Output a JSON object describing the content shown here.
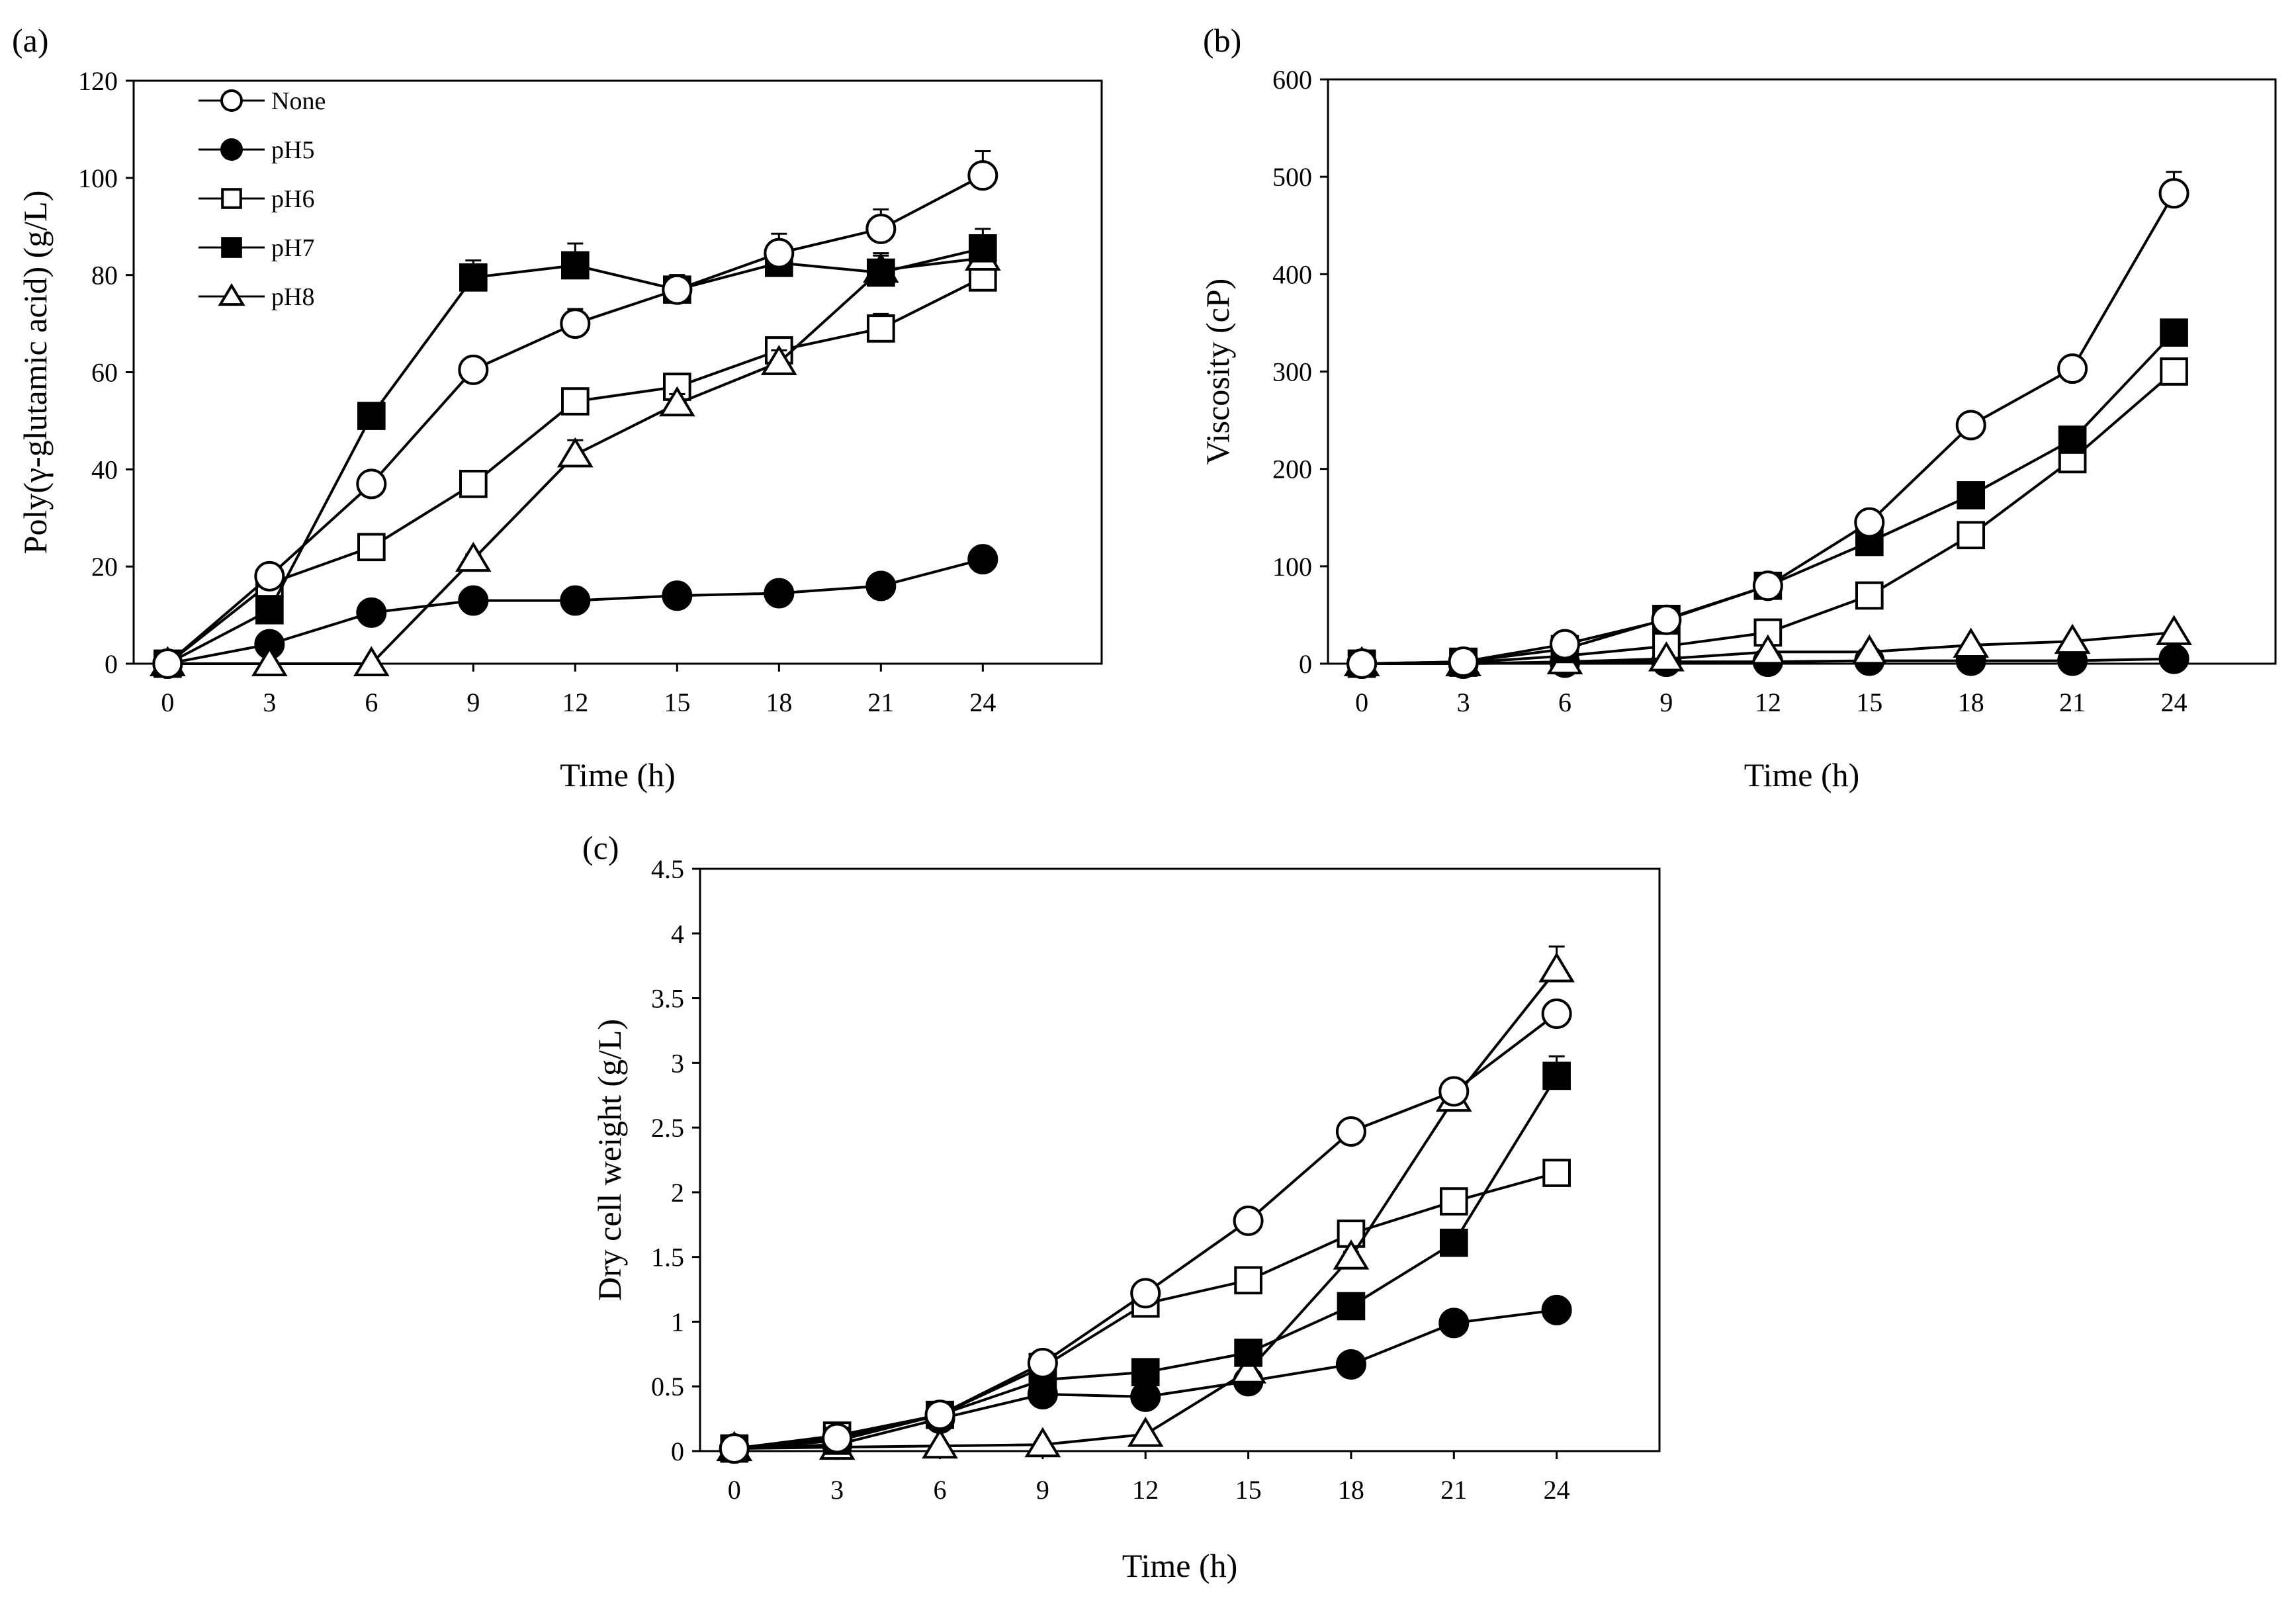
{
  "chart_data": [
    {
      "panel_label": "(a)",
      "type": "line",
      "xlabel": "Time (h)",
      "ylabel": "Poly(γ-glutamic acid) (g/L)",
      "x": [
        0,
        3,
        6,
        9,
        12,
        15,
        18,
        21,
        24
      ],
      "x_tick_labels": [
        "0",
        "3",
        "6",
        "9",
        "12",
        "15",
        "18",
        "21",
        "24"
      ],
      "xlim": [
        -1,
        27.5
      ],
      "ylim": [
        0,
        120
      ],
      "y_tick_values": [
        0,
        20,
        40,
        60,
        80,
        100,
        120
      ],
      "y_tick_labels": [
        "0",
        "20",
        "40",
        "60",
        "80",
        "100",
        "120"
      ],
      "legend": {
        "position": "top-left",
        "show": true
      },
      "series": [
        {
          "name": "None",
          "marker": "circle-open",
          "values": [
            0,
            18,
            37,
            60.5,
            70,
            77,
            84.5,
            89.5,
            100.5
          ],
          "errors": [
            0,
            1,
            1,
            1.5,
            3,
            2,
            4,
            4,
            5
          ]
        },
        {
          "name": "pH5",
          "marker": "circle-filled",
          "values": [
            0,
            4,
            10.5,
            13,
            13,
            14,
            14.5,
            16,
            21.5
          ],
          "errors": [
            0,
            0.5,
            0.5,
            0.5,
            0.5,
            0.5,
            0.5,
            1,
            1
          ]
        },
        {
          "name": "pH6",
          "marker": "square-open",
          "values": [
            0,
            16.5,
            24,
            37,
            54,
            57,
            64.5,
            69,
            79.5
          ],
          "errors": [
            0,
            1,
            1,
            1,
            1.5,
            1.5,
            2.5,
            3,
            3
          ]
        },
        {
          "name": "pH7",
          "marker": "square-filled",
          "values": [
            0,
            11,
            51,
            79.5,
            82,
            77,
            82.5,
            80.5,
            85.5
          ],
          "errors": [
            0,
            1,
            2,
            3.5,
            4.5,
            3,
            4,
            4,
            4
          ]
        },
        {
          "name": "pH8",
          "marker": "triangle-open",
          "values": [
            0,
            0,
            0,
            21.5,
            43,
            53.5,
            62,
            81,
            83.5
          ],
          "errors": [
            0,
            0,
            0,
            1,
            3,
            2,
            2.5,
            3,
            3
          ]
        }
      ]
    },
    {
      "panel_label": "(b)",
      "type": "line",
      "xlabel": "Time (h)",
      "ylabel": "Viscosity (cP)",
      "x": [
        0,
        3,
        6,
        9,
        12,
        15,
        18,
        21,
        24
      ],
      "x_tick_labels": [
        "0",
        "3",
        "6",
        "9",
        "12",
        "15",
        "18",
        "21",
        "24"
      ],
      "xlim": [
        -1,
        27
      ],
      "ylim": [
        0,
        600
      ],
      "y_tick_values": [
        0,
        100,
        200,
        300,
        400,
        500,
        600
      ],
      "y_tick_labels": [
        "0",
        "100",
        "200",
        "300",
        "400",
        "500",
        "600"
      ],
      "legend": {
        "show": false
      },
      "series": [
        {
          "name": "None",
          "marker": "circle-open",
          "values": [
            0,
            2,
            20,
            45,
            80,
            145,
            245,
            303,
            483
          ],
          "errors": [
            0,
            0,
            1,
            2,
            3,
            4,
            5,
            5,
            22
          ]
        },
        {
          "name": "pH5",
          "marker": "circle-filled",
          "values": [
            0,
            0,
            1,
            2,
            2,
            3,
            3,
            3,
            5
          ],
          "errors": [
            0,
            0,
            0,
            0,
            0,
            0,
            0,
            0,
            0
          ]
        },
        {
          "name": "pH6",
          "marker": "square-open",
          "values": [
            0,
            1,
            8,
            18,
            32,
            70,
            132,
            210,
            300
          ],
          "errors": [
            0,
            0,
            1,
            1,
            2,
            3,
            4,
            6,
            8
          ]
        },
        {
          "name": "pH7",
          "marker": "square-filled",
          "values": [
            0,
            2,
            15,
            46,
            80,
            125,
            173,
            230,
            340
          ],
          "errors": [
            0,
            0,
            1,
            2,
            3,
            4,
            5,
            6,
            12
          ]
        },
        {
          "name": "pH8",
          "marker": "triangle-open",
          "values": [
            0,
            0,
            2,
            5,
            12,
            12,
            19,
            23,
            32
          ],
          "errors": [
            0,
            0,
            0,
            0,
            1,
            1,
            1,
            1,
            2
          ]
        }
      ]
    },
    {
      "panel_label": "(c)",
      "type": "line",
      "xlabel": "Time (h)",
      "ylabel": "Dry cell weight (g/L)",
      "x": [
        0,
        3,
        6,
        9,
        12,
        15,
        18,
        21,
        24
      ],
      "x_tick_labels": [
        "0",
        "3",
        "6",
        "9",
        "12",
        "15",
        "18",
        "21",
        "24"
      ],
      "xlim": [
        -1,
        27
      ],
      "ylim": [
        0,
        4.5
      ],
      "y_tick_values": [
        0,
        0.5,
        1,
        1.5,
        2,
        2.5,
        3,
        3.5,
        4,
        4.5
      ],
      "y_tick_labels": [
        "0",
        "0.5",
        "1",
        "1.5",
        "2",
        "2.5",
        "3",
        "3.5",
        "4",
        "4.5"
      ],
      "legend": {
        "show": false
      },
      "series": [
        {
          "name": "None",
          "marker": "circle-open",
          "values": [
            0.02,
            0.1,
            0.28,
            0.68,
            1.22,
            1.78,
            2.47,
            2.78,
            3.38
          ],
          "errors": [
            0,
            0,
            0.01,
            0.02,
            0.03,
            0.03,
            0.04,
            0.06,
            0.08
          ]
        },
        {
          "name": "pH5",
          "marker": "circle-filled",
          "values": [
            0.02,
            0.05,
            0.25,
            0.44,
            0.42,
            0.54,
            0.67,
            0.99,
            1.09
          ],
          "errors": [
            0,
            0,
            0.01,
            0.02,
            0.02,
            0.02,
            0.03,
            0.03,
            0.04
          ]
        },
        {
          "name": "pH6",
          "marker": "square-open",
          "values": [
            0.02,
            0.12,
            0.28,
            0.65,
            1.14,
            1.32,
            1.68,
            1.93,
            2.15
          ],
          "errors": [
            0,
            0,
            0.01,
            0.02,
            0.03,
            0.03,
            0.04,
            0.05,
            0.05
          ]
        },
        {
          "name": "pH7",
          "marker": "square-filled",
          "values": [
            0.02,
            0.08,
            0.28,
            0.55,
            0.61,
            0.76,
            1.12,
            1.61,
            2.9
          ],
          "errors": [
            0,
            0,
            0.01,
            0.02,
            0.02,
            0.03,
            0.04,
            0.05,
            0.15
          ]
        },
        {
          "name": "pH8",
          "marker": "triangle-open",
          "values": [
            0.02,
            0.03,
            0.04,
            0.05,
            0.13,
            0.62,
            1.5,
            2.72,
            3.72
          ],
          "errors": [
            0,
            0,
            0,
            0,
            0.01,
            0.03,
            0.04,
            0.1,
            0.18
          ]
        }
      ]
    }
  ]
}
